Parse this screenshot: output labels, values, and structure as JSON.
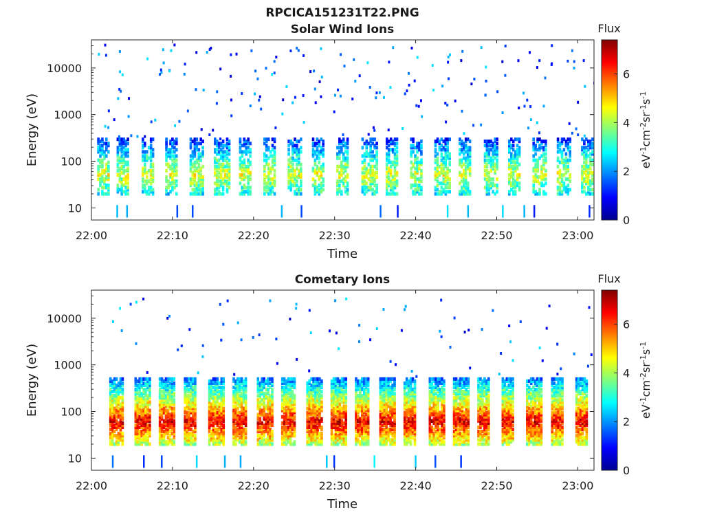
{
  "figure_title": "RPCICA151231T22.PNG",
  "colorbar_common": {
    "title": "Flux",
    "label_base": "eV",
    "label_sup1": "-1",
    "label_cm": "cm",
    "label_sup2": "-2",
    "label_sr": "sr",
    "label_sup3": "-1",
    "label_s": "s",
    "label_sup4": "-1",
    "ticks": [
      "0",
      "2",
      "4",
      "6"
    ],
    "colormap": "jet"
  },
  "chart_data": [
    {
      "type": "heatmap",
      "title": "Solar Wind Ions",
      "xlabel": "Time",
      "ylabel": "Energy (eV)",
      "x_ticks": [
        "22:00",
        "22:10",
        "22:20",
        "22:30",
        "22:40",
        "22:50",
        "23:00"
      ],
      "x_tick_minutes": [
        0,
        10,
        20,
        30,
        40,
        50,
        60
      ],
      "x_range_minutes": [
        0,
        62
      ],
      "y_scale": "log",
      "y_ticks": [
        "10",
        "100",
        "1000",
        "10000"
      ],
      "y_tick_values": [
        10,
        100,
        1000,
        10000
      ],
      "y_range": [
        5.5,
        40000
      ],
      "clim": [
        0,
        7.4
      ],
      "sweep_start_minutes": [
        0.7,
        3.1,
        6.2,
        9.1,
        12.1,
        15.1,
        18.2,
        21.2,
        24.2,
        27.2,
        30.2,
        33.3,
        36.3,
        39.3,
        42.3,
        45.3,
        48.4,
        51.4,
        54.4,
        57.4,
        60.4
      ],
      "peak_flux": 4.4,
      "peak_energy_range_eV": [
        20,
        300
      ]
    },
    {
      "type": "heatmap",
      "title": "Cometary Ions",
      "xlabel": "Time",
      "ylabel": "Energy (eV)",
      "x_ticks": [
        "22:00",
        "22:10",
        "22:20",
        "22:30",
        "22:40",
        "22:50",
        "23:00"
      ],
      "x_tick_minutes": [
        0,
        10,
        20,
        30,
        40,
        50,
        60
      ],
      "x_range_minutes": [
        0,
        62
      ],
      "y_scale": "log",
      "y_ticks": [
        "10",
        "100",
        "1000",
        "10000"
      ],
      "y_tick_values": [
        10,
        100,
        1000,
        10000
      ],
      "y_range": [
        5.5,
        40000
      ],
      "clim": [
        0,
        7.4
      ],
      "sweep_start_minutes": [
        2.2,
        5.3,
        8.3,
        11.4,
        14.4,
        17.4,
        20.4,
        23.4,
        26.5,
        29.5,
        32.5,
        35.5,
        38.5,
        41.6,
        44.6,
        47.6,
        50.6,
        53.6,
        56.7,
        59.7
      ],
      "peak_flux": 6.6,
      "peak_energy_range_eV": [
        20,
        500
      ]
    }
  ]
}
